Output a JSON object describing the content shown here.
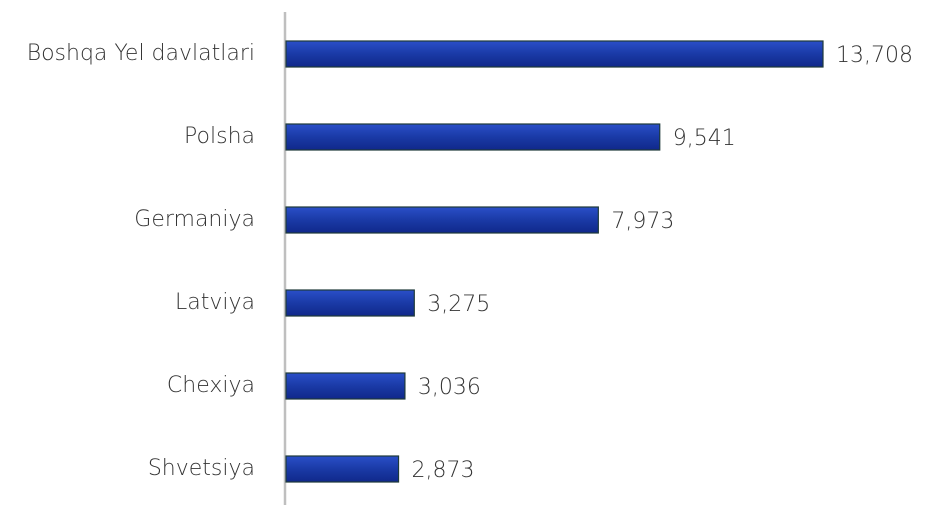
{
  "chart_data": {
    "type": "bar",
    "orientation": "horizontal",
    "categories": [
      "Boshqa Yel davlatlari",
      "Polsha",
      "Germaniya",
      "Latviya",
      "Chexiya",
      "Shvetsiya"
    ],
    "values": [
      13708,
      9541,
      7973,
      3275,
      3036,
      2873
    ],
    "value_labels": [
      "13,708",
      "9,541",
      "7,973",
      "3,275",
      "3,036",
      "2,873"
    ],
    "color": "#1a3aa6"
  }
}
